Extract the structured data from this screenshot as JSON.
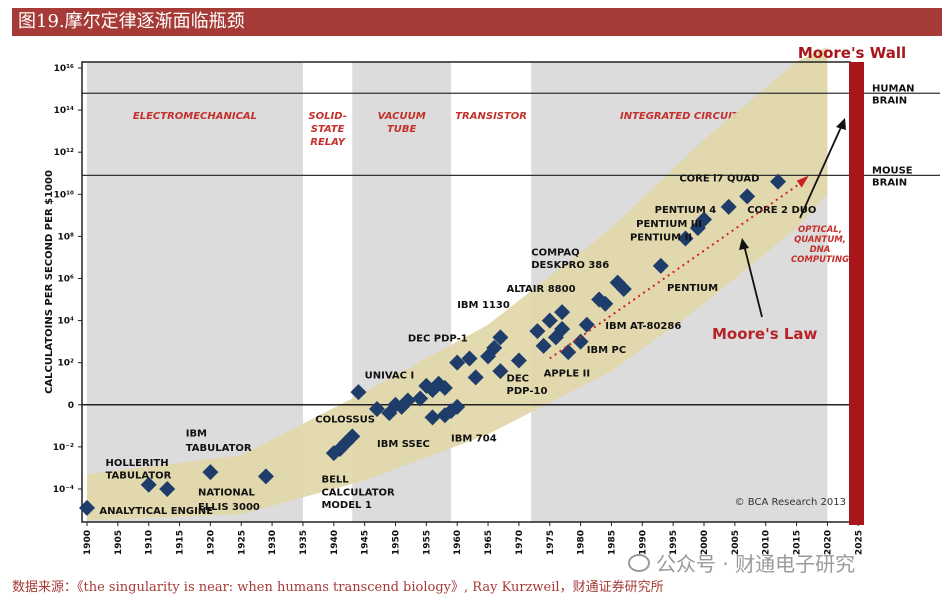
{
  "header": {
    "title": "图19.摩尔定律逐渐面临瓶颈"
  },
  "footer": {
    "source": "数据来源：《the singularity is near: when humans transcend biology》, Ray Kurzweil，财通证券研究所",
    "watermark": "公众号 · 财通电子研究"
  },
  "colors": {
    "header_bg": "#a53a36",
    "band": "#e2d7a8",
    "era_band": "#dcdcdc",
    "marker": "#1f3d6b",
    "wall": "#a8151b",
    "era_label": "#c4302b",
    "law_label": "#b8232a",
    "dotted_line": "#cc2222"
  },
  "chart_data": {
    "type": "scatter",
    "title": "",
    "ylabel": "CALCULATOINS PER SECOND PER $1000",
    "xlabel": "",
    "xlim": [
      1900,
      2025
    ],
    "ylim_log10": [
      -5,
      16
    ],
    "y_scale": "log",
    "x_ticks": [
      1900,
      1905,
      1910,
      1915,
      1920,
      1925,
      1930,
      1935,
      1940,
      1945,
      1950,
      1955,
      1960,
      1965,
      1970,
      1975,
      1980,
      1985,
      1990,
      1995,
      2000,
      2005,
      2010,
      2015,
      2020,
      2025
    ],
    "y_ticks": [
      {
        "exp": 16,
        "label": "10¹⁶"
      },
      {
        "exp": 14,
        "label": "10¹⁴"
      },
      {
        "exp": 12,
        "label": "10¹²"
      },
      {
        "exp": 10,
        "label": "10¹⁰"
      },
      {
        "exp": 8,
        "label": "10⁸"
      },
      {
        "exp": 6,
        "label": "10⁶"
      },
      {
        "exp": 4,
        "label": "10⁴"
      },
      {
        "exp": 2,
        "label": "10²"
      },
      {
        "exp": 0,
        "label": "0"
      },
      {
        "exp": -2,
        "label": "10⁻²"
      },
      {
        "exp": -4,
        "label": "10⁻⁴"
      }
    ],
    "eras": [
      {
        "name": "ELECTROMECHANICAL",
        "from": 1900,
        "to": 1935,
        "shaded": true
      },
      {
        "name": "SOLID-STATE RELAY",
        "from": 1935,
        "to": 1943,
        "shaded": false
      },
      {
        "name": "VACUUM TUBE",
        "from": 1943,
        "to": 1959,
        "shaded": true
      },
      {
        "name": "TRANSISTOR",
        "from": 1959,
        "to": 1972,
        "shaded": false
      },
      {
        "name": "INTEGRATED CIRCUIT",
        "from": 1972,
        "to": 2020,
        "shaded": true
      }
    ],
    "reference_lines": [
      {
        "name": "HUMAN BRAIN",
        "y_exp": 14.8
      },
      {
        "name": "MOUSE BRAIN",
        "y_exp": 10.9
      }
    ],
    "points": [
      [
        1900,
        -4.9
      ],
      [
        1910,
        -3.8
      ],
      [
        1913,
        -4.0
      ],
      [
        1920,
        -3.2
      ],
      [
        1929,
        -3.4
      ],
      [
        1940,
        -2.3
      ],
      [
        1941,
        -2.1
      ],
      [
        1942,
        -1.8
      ],
      [
        1943,
        -1.5
      ],
      [
        1944,
        0.6
      ],
      [
        1947,
        -0.2
      ],
      [
        1949,
        -0.4
      ],
      [
        1950,
        0.0
      ],
      [
        1951,
        -0.1
      ],
      [
        1952,
        0.2
      ],
      [
        1954,
        0.3
      ],
      [
        1955,
        0.9
      ],
      [
        1956,
        0.7
      ],
      [
        1957,
        1.0
      ],
      [
        1958,
        0.8
      ],
      [
        1956,
        -0.6
      ],
      [
        1958,
        -0.5
      ],
      [
        1959,
        -0.3
      ],
      [
        1960,
        -0.1
      ],
      [
        1960,
        2.0
      ],
      [
        1962,
        2.2
      ],
      [
        1963,
        1.3
      ],
      [
        1965,
        2.3
      ],
      [
        1966,
        2.7
      ],
      [
        1967,
        3.2
      ],
      [
        1967,
        1.6
      ],
      [
        1970,
        2.1
      ],
      [
        1973,
        3.5
      ],
      [
        1974,
        2.8
      ],
      [
        1975,
        4.0
      ],
      [
        1976,
        3.2
      ],
      [
        1977,
        4.4
      ],
      [
        1977,
        3.6
      ],
      [
        1978,
        2.5
      ],
      [
        1980,
        3.0
      ],
      [
        1981,
        3.8
      ],
      [
        1983,
        5.0
      ],
      [
        1984,
        4.8
      ],
      [
        1986,
        5.8
      ],
      [
        1987,
        5.5
      ],
      [
        1993,
        6.6
      ],
      [
        1997,
        7.9
      ],
      [
        1999,
        8.4
      ],
      [
        2000,
        8.8
      ],
      [
        2004,
        9.4
      ],
      [
        2007,
        9.9
      ],
      [
        2012,
        10.6
      ]
    ],
    "band": [
      {
        "x": 1900,
        "lo": -5.5,
        "hi": -3.3
      },
      {
        "x": 1925,
        "lo": -5.2,
        "hi": -2.4
      },
      {
        "x": 1945,
        "lo": -3.6,
        "hi": 0.6
      },
      {
        "x": 1965,
        "lo": -1.4,
        "hi": 3.8
      },
      {
        "x": 1985,
        "lo": 1.6,
        "hi": 8.4
      },
      {
        "x": 2000,
        "lo": 4.8,
        "hi": 12.6
      },
      {
        "x": 2015,
        "lo": 8.4,
        "hi": 16.3
      },
      {
        "x": 2020,
        "lo": 10.0,
        "hi": 17.0
      }
    ],
    "moores_law_line": {
      "from": [
        1975,
        2.2
      ],
      "to": [
        2016,
        10.6
      ]
    },
    "annotations": [
      {
        "text": "ANALYTICAL ENGINE",
        "x": 1902,
        "y": -5.2,
        "anchor": "start"
      },
      {
        "text": "HOLLERITH",
        "x": 1903,
        "y": -2.9,
        "anchor": "start"
      },
      {
        "text": "TABULATOR",
        "x": 1903,
        "y": -3.5,
        "anchor": "start"
      },
      {
        "text": "IBM",
        "x": 1916,
        "y": -1.5,
        "anchor": "start"
      },
      {
        "text": "TABULATOR",
        "x": 1916,
        "y": -2.2,
        "anchor": "start"
      },
      {
        "text": "NATIONAL",
        "x": 1918,
        "y": -4.3,
        "anchor": "start"
      },
      {
        "text": "ELLIS 3000",
        "x": 1918,
        "y": -5.0,
        "anchor": "start"
      },
      {
        "text": "COLOSSUS",
        "x": 1937,
        "y": -0.85,
        "anchor": "start"
      },
      {
        "text": "BELL",
        "x": 1938,
        "y": -3.7,
        "anchor": "start"
      },
      {
        "text": "CALCULATOR",
        "x": 1938,
        "y": -4.3,
        "anchor": "start"
      },
      {
        "text": "MODEL 1",
        "x": 1938,
        "y": -4.9,
        "anchor": "start"
      },
      {
        "text": "UNIVAC I",
        "x": 1945,
        "y": 1.25,
        "anchor": "start"
      },
      {
        "text": "IBM SSEC",
        "x": 1947,
        "y": -2.0,
        "anchor": "start"
      },
      {
        "text": "IBM 704",
        "x": 1959,
        "y": -1.75,
        "anchor": "start"
      },
      {
        "text": "DEC PDP-1",
        "x": 1952,
        "y": 3.0,
        "anchor": "start"
      },
      {
        "text": "IBM 1130",
        "x": 1960,
        "y": 4.6,
        "anchor": "start"
      },
      {
        "text": "DEC",
        "x": 1968,
        "y": 1.1,
        "anchor": "start"
      },
      {
        "text": "PDP-10",
        "x": 1968,
        "y": 0.5,
        "anchor": "start"
      },
      {
        "text": "ALTAIR 8800",
        "x": 1968,
        "y": 5.35,
        "anchor": "start"
      },
      {
        "text": "COMPAQ",
        "x": 1972,
        "y": 7.1,
        "anchor": "start"
      },
      {
        "text": "DESKPRO 386",
        "x": 1972,
        "y": 6.5,
        "anchor": "start"
      },
      {
        "text": "APPLE II",
        "x": 1974,
        "y": 1.35,
        "anchor": "start"
      },
      {
        "text": "IBM PC",
        "x": 1981,
        "y": 2.45,
        "anchor": "start"
      },
      {
        "text": "IBM AT-80286",
        "x": 1984,
        "y": 3.6,
        "anchor": "start"
      },
      {
        "text": "PENTIUM",
        "x": 1994,
        "y": 5.4,
        "anchor": "start"
      },
      {
        "text": "PENTIUM 4",
        "x": 1992,
        "y": 9.1,
        "anchor": "start"
      },
      {
        "text": "PENTIUM III",
        "x": 1989,
        "y": 8.45,
        "anchor": "start"
      },
      {
        "text": "PENTIUM II",
        "x": 1988,
        "y": 7.8,
        "anchor": "start"
      },
      {
        "text": "CORE i7 QUAD",
        "x": 1996,
        "y": 10.6,
        "anchor": "start"
      },
      {
        "text": "CORE 2 DUO",
        "x": 2007,
        "y": 9.1,
        "anchor": "start"
      }
    ],
    "labels": {
      "moores_wall": "Moore's Wall",
      "moores_law": "Moore's Law",
      "future_tech": [
        "OPTICAL,",
        "QUANTUM,",
        "DNA",
        "COMPUTING"
      ],
      "copyright": "© BCA Research 2013"
    }
  }
}
